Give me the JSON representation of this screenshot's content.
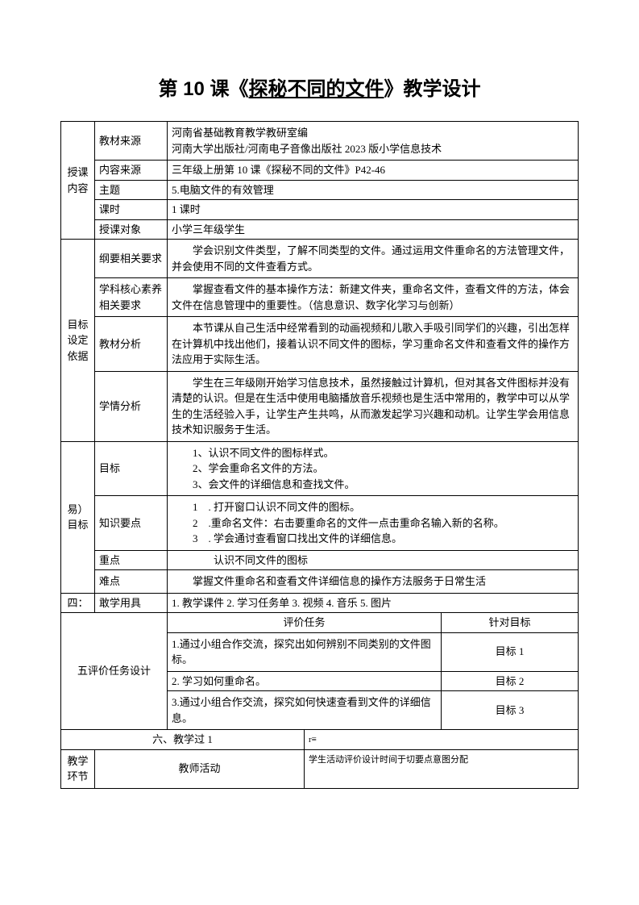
{
  "title": {
    "prefix": "第 10 课《",
    "underlined": "探秘不同的文件",
    "suffix": "》教学设计"
  },
  "section1": {
    "header": "授课内容",
    "rows": {
      "source_label": "教材来源",
      "source_text": "河南省基础教育教学教研室编\n河南大学出版社/河南电子音像出版社 2023 版小学信息技术",
      "content_label": "内容来源",
      "content_text": "三年级上册第 10 课《探秘不同的文件》P42-46",
      "topic_label": "主题",
      "topic_text": "5.电脑文件的有效管理",
      "period_label": "课时",
      "period_text": "1 课时",
      "target_label": "授课对象",
      "target_text": "小学三年级学生"
    }
  },
  "section2": {
    "header": "目标设定依据",
    "outline_label": "纲要相关要求",
    "outline_text": "学会识别文件类型，了解不同类型的文件。通过运用文件重命名的方法管理文件，并会使用不同的文件查看方式。",
    "core_label": "学科核心素养相关要求",
    "core_text": "掌握查看文件的基本操作方法：新建文件夹，重命名文件，查看文件的方法，体会文件在信息管理中的重要性。（信息意识、数字化学习与创新）",
    "material_label": "教材分析",
    "material_text": "本节课从自己生活中经常看到的动画视频和儿歌入手吸引同学们的兴趣，引出怎样在计算机中找出他们，接着认识不同文件的图标，学习重命名文件和查看文件的操作方法应用于实际生活。",
    "student_label": "学情分析",
    "student_text": "学生在三年级刚开始学习信息技术，虽然接触过计算机，但对其各文件图标并没有清楚的认识。但是在生活中使用电脑播放音乐视频也是生活中常用的，教学中可以从学生的生活经验入手，让学生产生共鸣，从而激发起学习兴趣和动机。让学生学会用信息技术知识服务于生活。"
  },
  "section3": {
    "header": "易）目标",
    "goal_label": "目标",
    "goal_1": "1、认识不同文件的图标样式。",
    "goal_2": "2、学会重命名文件的方法。",
    "goal_3": "3、会文件的详细信息和查找文件。",
    "knowledge_label": "知识要点",
    "knowledge_1": "1　. 打开窗口认识不同文件的图标。",
    "knowledge_2": "2　.重命名文件：右击要重命名的文件一点击重命名输入新的名称。",
    "knowledge_3": "3　. 学会通讨查看窗口找出文件的详细信息。",
    "key_label": "重点",
    "key_text": "认识不同文件的图标",
    "diff_label": "难点",
    "diff_text": "掌握文件重命名和查看文件详细信息的操作方法服务于日常生活"
  },
  "section4": {
    "header": "四：",
    "label": "敢学用具",
    "text": "1. 教学课件 2. 学习任务单 3. 视频 4. 音乐 5. 图片"
  },
  "section5": {
    "header": "五评价任务设计",
    "task_header": "评价任务",
    "target_header": "针对目标",
    "task1": "1.通过小组合作交流，探究出如何辨别不同类别的文件图标。",
    "target1": "目标 1",
    "task2": "2. 学习如何重命名。",
    "target2": "目标 2",
    "task3": "3.通过小组合作交流，探究如何快速查看到文件的详细信息。",
    "target3": "目标 3"
  },
  "section6": {
    "header": "六、教学过 1",
    "mark": "r≡",
    "stage_label": "教学环节",
    "teacher_label": "教师活动",
    "student_label": "学生活动评价设计时间于切要点意图分配"
  }
}
